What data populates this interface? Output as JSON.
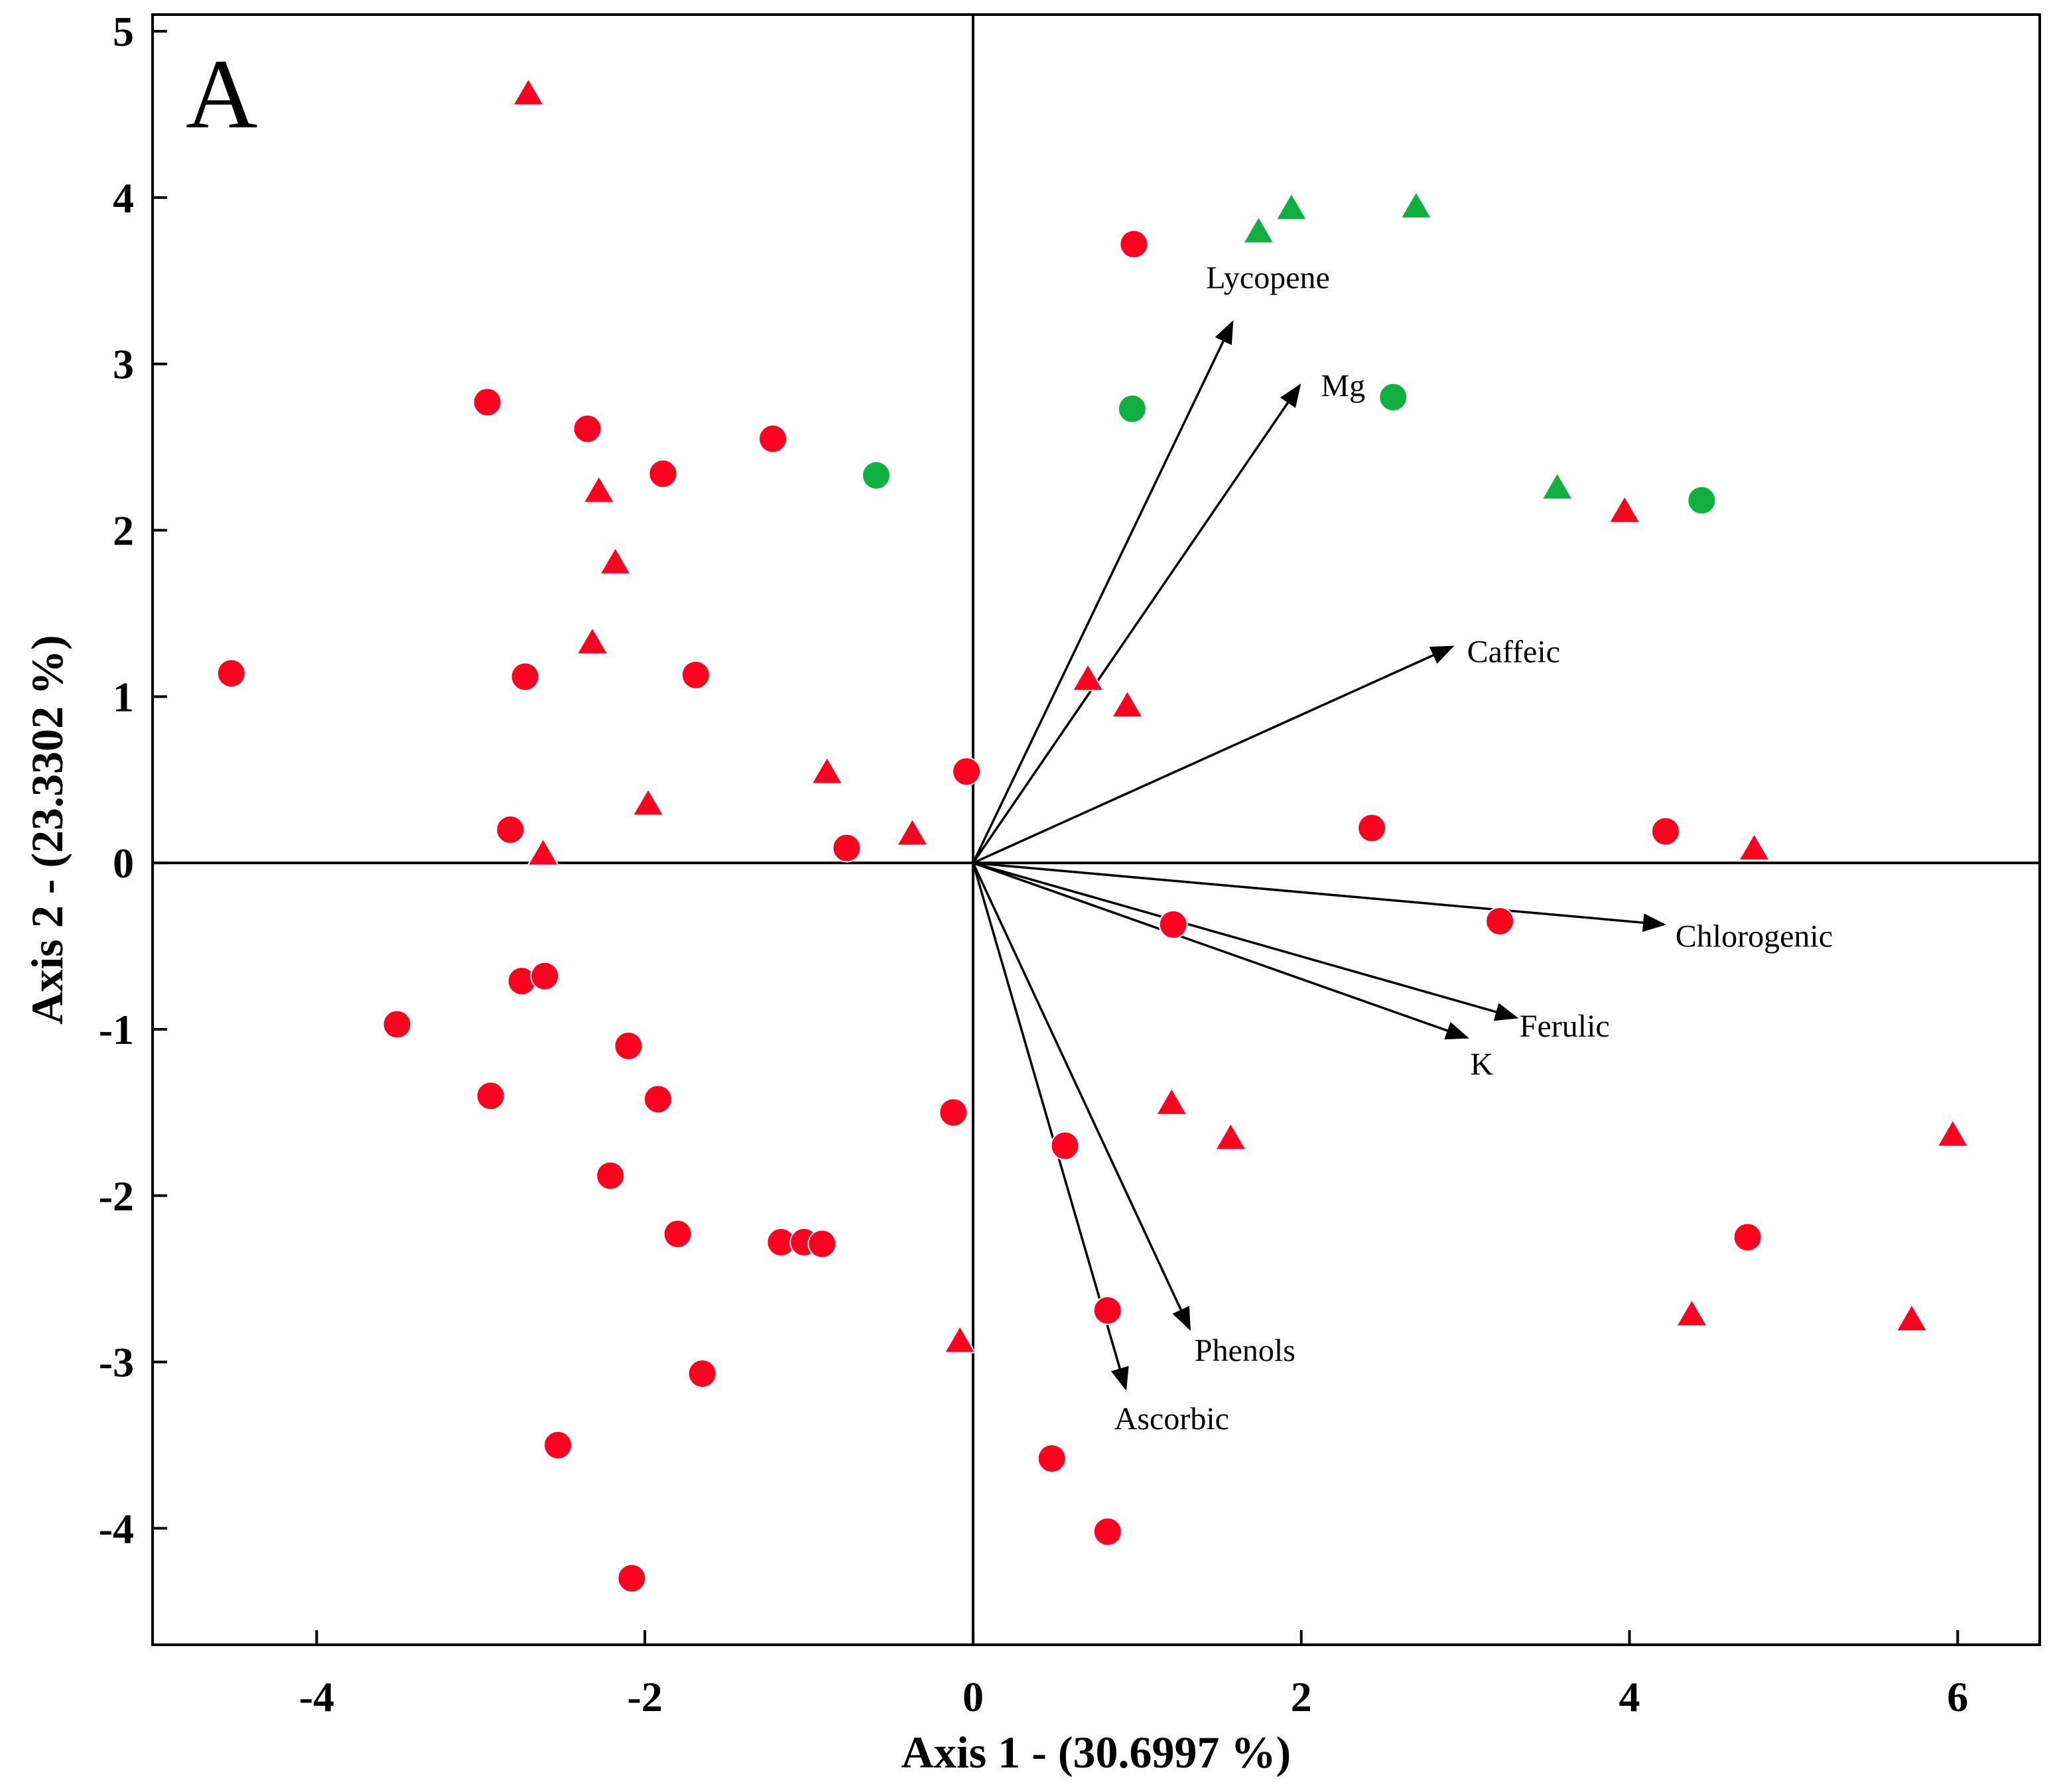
{
  "chart_data": {
    "type": "scatter",
    "title": "",
    "panel_label": "A",
    "xlabel": "Axis 1 - (30.6997 %)",
    "ylabel": "Axis 2 - (23.3302 %)",
    "xlim": [
      -5,
      6.5
    ],
    "ylim": [
      -4.7,
      5.1
    ],
    "x_ticks": [
      -4,
      -2,
      0,
      2,
      4,
      6
    ],
    "x_tick_labels": [
      "-4",
      "-2",
      "0",
      "2",
      "4",
      "6"
    ],
    "y_ticks": [
      -4,
      -3,
      -2,
      -1,
      0,
      1,
      2,
      3,
      4,
      5
    ],
    "y_tick_labels": [
      "-4",
      "-3",
      "-2",
      "-1",
      "0",
      "1",
      "2",
      "3",
      "4",
      "5"
    ],
    "colors": {
      "red": "#ff0020",
      "green": "#10b040",
      "axis": "#000000"
    },
    "series": [
      {
        "name": "red-circles",
        "marker": "circle",
        "color": "#ff0020",
        "points": [
          [
            0.98,
            3.72
          ],
          [
            -2.96,
            2.77
          ],
          [
            -2.35,
            2.61
          ],
          [
            -1.22,
            2.55
          ],
          [
            -1.89,
            2.34
          ],
          [
            -4.52,
            1.14
          ],
          [
            -2.73,
            1.12
          ],
          [
            -1.69,
            1.13
          ],
          [
            -0.04,
            0.55
          ],
          [
            -2.82,
            0.2
          ],
          [
            -0.77,
            0.09
          ],
          [
            2.43,
            0.21
          ],
          [
            4.22,
            0.19
          ],
          [
            1.22,
            -0.37
          ],
          [
            3.21,
            -0.35
          ],
          [
            -2.75,
            -0.71
          ],
          [
            -2.61,
            -0.68
          ],
          [
            -3.51,
            -0.97
          ],
          [
            -2.1,
            -1.1
          ],
          [
            -2.94,
            -1.4
          ],
          [
            -1.92,
            -1.42
          ],
          [
            -0.12,
            -1.5
          ],
          [
            0.56,
            -1.7
          ],
          [
            -2.21,
            -1.88
          ],
          [
            -1.8,
            -2.23
          ],
          [
            -1.17,
            -2.28
          ],
          [
            -1.03,
            -2.28
          ],
          [
            -0.92,
            -2.29
          ],
          [
            4.72,
            -2.25
          ],
          [
            0.82,
            -2.69
          ],
          [
            -1.65,
            -3.07
          ],
          [
            -2.53,
            -3.5
          ],
          [
            0.48,
            -3.58
          ],
          [
            0.82,
            -4.02
          ],
          [
            -2.08,
            -4.3
          ]
        ]
      },
      {
        "name": "red-triangles",
        "marker": "triangle",
        "color": "#ff0020",
        "points": [
          [
            -2.71,
            4.62
          ],
          [
            -2.28,
            2.23
          ],
          [
            -2.18,
            1.8
          ],
          [
            -2.32,
            1.32
          ],
          [
            0.7,
            1.1
          ],
          [
            0.94,
            0.94
          ],
          [
            -0.89,
            0.54
          ],
          [
            -1.98,
            0.35
          ],
          [
            -0.37,
            0.17
          ],
          [
            -2.62,
            0.05
          ],
          [
            4.76,
            0.08
          ],
          [
            3.97,
            2.11
          ],
          [
            1.21,
            -1.45
          ],
          [
            1.57,
            -1.66
          ],
          [
            5.97,
            -1.64
          ],
          [
            4.38,
            -2.72
          ],
          [
            5.72,
            -2.75
          ],
          [
            -0.08,
            -2.88
          ]
        ]
      },
      {
        "name": "green-triangles",
        "marker": "triangle",
        "color": "#10b040",
        "points": [
          [
            1.74,
            3.79
          ],
          [
            1.94,
            3.93
          ],
          [
            2.7,
            3.94
          ],
          [
            3.56,
            2.25
          ]
        ]
      },
      {
        "name": "green-circles",
        "marker": "circle",
        "color": "#10b040",
        "points": [
          [
            -0.59,
            2.33
          ],
          [
            0.97,
            2.73
          ],
          [
            2.56,
            2.8
          ],
          [
            4.44,
            2.18
          ]
        ]
      }
    ],
    "vectors": [
      {
        "name": "Lycopene",
        "x": 1.58,
        "y": 3.25,
        "label_x": 1.42,
        "label_y": 3.52
      },
      {
        "name": "Mg",
        "x": 1.99,
        "y": 2.87,
        "label_x": 2.12,
        "label_y": 2.87
      },
      {
        "name": "Caffeic",
        "x": 2.92,
        "y": 1.3,
        "label_x": 3.01,
        "label_y": 1.27
      },
      {
        "name": "Chlorogenic",
        "x": 4.21,
        "y": -0.37,
        "label_x": 4.28,
        "label_y": -0.44
      },
      {
        "name": "Ferulic",
        "x": 3.31,
        "y": -0.93,
        "label_x": 3.33,
        "label_y": -0.98
      },
      {
        "name": "K",
        "x": 3.01,
        "y": -1.05,
        "label_x": 3.03,
        "label_y": -1.21
      },
      {
        "name": "Phenols",
        "x": 1.32,
        "y": -2.8,
        "label_x": 1.35,
        "label_y": -2.93
      },
      {
        "name": "Ascorbic",
        "x": 0.93,
        "y": -3.16,
        "label_x": 0.86,
        "label_y": -3.34
      }
    ],
    "grid": false,
    "legend": "none"
  }
}
